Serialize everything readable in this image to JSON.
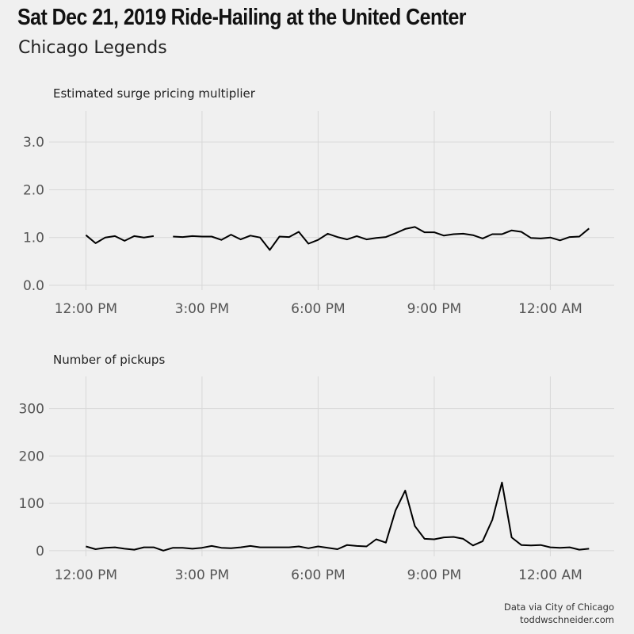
{
  "title": "Sat Dec 21, 2019 Ride-Hailing at the United Center",
  "subtitle": "Chicago Legends",
  "caption": [
    "Data via City of Chicago",
    "toddwschneider.com"
  ],
  "style": {
    "background": "#f0f0f0",
    "grid": "#d8d8d8",
    "line": "#000000",
    "text": "#555555"
  },
  "chart_data": [
    {
      "type": "line",
      "title": "Estimated surge pricing multiplier",
      "x_unit": "hours from 12:00 PM (15-minute intervals)",
      "x_ticks": [
        0,
        3,
        6,
        9,
        12
      ],
      "x_tick_labels": [
        "12:00 PM",
        "3:00 PM",
        "6:00 PM",
        "9:00 PM",
        "12:00 AM"
      ],
      "xlim": [
        -0.95,
        13.65
      ],
      "ylim": [
        -0.1,
        3.65
      ],
      "y_ticks": [
        0,
        1,
        2,
        3
      ],
      "y_tick_labels": [
        "0.0",
        "1.0",
        "2.0",
        "3.0"
      ],
      "grid": true,
      "series": [
        {
          "values": [
            [
              0.0,
              1.05
            ],
            [
              0.25,
              0.88
            ],
            [
              0.5,
              1.0
            ],
            [
              0.75,
              1.03
            ],
            [
              1.0,
              0.93
            ],
            [
              1.25,
              1.03
            ],
            [
              1.5,
              1.0
            ],
            [
              1.75,
              1.03
            ],
            null,
            [
              2.25,
              1.02
            ],
            [
              2.5,
              1.01
            ],
            [
              2.75,
              1.03
            ],
            [
              3.0,
              1.02
            ],
            [
              3.25,
              1.02
            ],
            [
              3.5,
              0.95
            ],
            [
              3.75,
              1.06
            ],
            [
              4.0,
              0.96
            ],
            [
              4.25,
              1.04
            ],
            [
              4.5,
              1.0
            ],
            [
              4.75,
              0.74
            ],
            [
              5.0,
              1.02
            ],
            [
              5.25,
              1.01
            ],
            [
              5.5,
              1.12
            ],
            [
              5.75,
              0.87
            ],
            [
              6.0,
              0.95
            ],
            [
              6.25,
              1.08
            ],
            [
              6.5,
              1.01
            ],
            [
              6.75,
              0.96
            ],
            [
              7.0,
              1.03
            ],
            [
              7.25,
              0.96
            ],
            [
              7.5,
              0.99
            ],
            [
              7.75,
              1.01
            ],
            [
              8.0,
              1.09
            ],
            [
              8.25,
              1.18
            ],
            [
              8.5,
              1.22
            ],
            [
              8.75,
              1.11
            ],
            [
              9.0,
              1.11
            ],
            [
              9.25,
              1.04
            ],
            [
              9.5,
              1.07
            ],
            [
              9.75,
              1.08
            ],
            [
              10.0,
              1.05
            ],
            [
              10.25,
              0.98
            ],
            [
              10.5,
              1.07
            ],
            [
              10.75,
              1.07
            ],
            [
              11.0,
              1.15
            ],
            [
              11.25,
              1.12
            ],
            [
              11.5,
              0.99
            ],
            [
              11.75,
              0.98
            ],
            [
              12.0,
              1.0
            ],
            [
              12.25,
              0.94
            ],
            [
              12.5,
              1.01
            ],
            [
              12.75,
              1.02
            ],
            [
              13.0,
              1.19
            ]
          ]
        }
      ]
    },
    {
      "type": "line",
      "title": "Number of pickups",
      "x_unit": "hours from 12:00 PM (15-minute intervals)",
      "x_ticks": [
        0,
        3,
        6,
        9,
        12
      ],
      "x_tick_labels": [
        "12:00 PM",
        "3:00 PM",
        "6:00 PM",
        "9:00 PM",
        "12:00 AM"
      ],
      "xlim": [
        -0.95,
        13.65
      ],
      "ylim": [
        -12,
        368
      ],
      "y_ticks": [
        0,
        100,
        200,
        300
      ],
      "y_tick_labels": [
        "0",
        "100",
        "200",
        "300"
      ],
      "grid": true,
      "series": [
        {
          "values": [
            [
              0.0,
              9
            ],
            [
              0.25,
              3
            ],
            [
              0.5,
              6
            ],
            [
              0.75,
              7
            ],
            [
              1.0,
              4
            ],
            [
              1.25,
              2
            ],
            [
              1.5,
              7
            ],
            [
              1.75,
              7
            ],
            [
              2.0,
              0
            ],
            [
              2.25,
              6
            ],
            [
              2.5,
              6
            ],
            [
              2.75,
              4
            ],
            [
              3.0,
              6
            ],
            [
              3.25,
              10
            ],
            [
              3.5,
              6
            ],
            [
              3.75,
              5
            ],
            [
              4.0,
              7
            ],
            [
              4.25,
              10
            ],
            [
              4.5,
              7
            ],
            [
              4.75,
              7
            ],
            [
              5.0,
              7
            ],
            [
              5.25,
              7
            ],
            [
              5.5,
              9
            ],
            [
              5.75,
              5
            ],
            [
              6.0,
              9
            ],
            [
              6.25,
              6
            ],
            [
              6.5,
              3
            ],
            [
              6.75,
              12
            ],
            [
              7.0,
              10
            ],
            [
              7.25,
              9
            ],
            [
              7.5,
              24
            ],
            [
              7.75,
              17
            ],
            [
              8.0,
              85
            ],
            [
              8.25,
              127
            ],
            [
              8.5,
              52
            ],
            [
              8.75,
              25
            ],
            [
              9.0,
              24
            ],
            [
              9.25,
              28
            ],
            [
              9.5,
              29
            ],
            [
              9.75,
              25
            ],
            [
              10.0,
              11
            ],
            [
              10.25,
              20
            ],
            [
              10.5,
              65
            ],
            [
              10.75,
              144
            ],
            [
              11.0,
              28
            ],
            [
              11.25,
              12
            ],
            [
              11.5,
              11
            ],
            [
              11.75,
              12
            ],
            [
              12.0,
              7
            ],
            [
              12.25,
              6
            ],
            [
              12.5,
              7
            ],
            [
              12.75,
              2
            ],
            [
              13.0,
              4
            ]
          ]
        }
      ]
    }
  ]
}
